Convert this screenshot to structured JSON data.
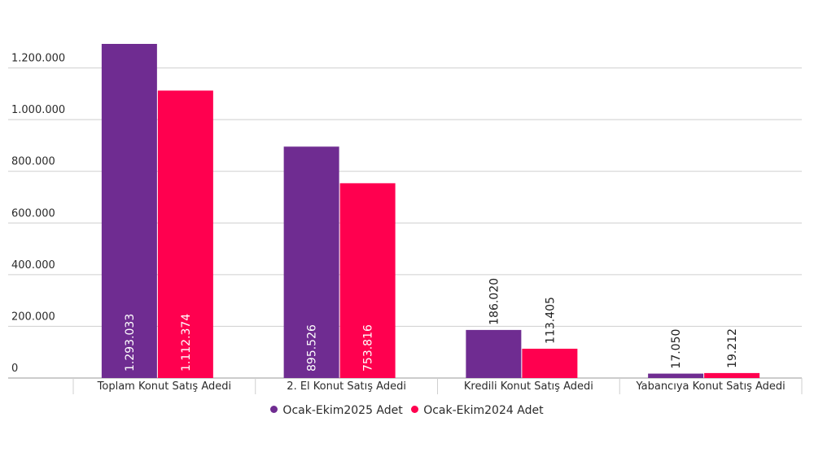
{
  "chart_data": {
    "type": "bar",
    "title": "",
    "xlabel": "",
    "ylabel": "",
    "ylim": [
      0,
      1300000
    ],
    "grid": true,
    "legend_position": "bottom",
    "yticks": [
      0,
      200000,
      400000,
      600000,
      800000,
      1000000,
      1200000
    ],
    "ytick_labels": [
      "0",
      "200.000",
      "400.000",
      "600.000",
      "800.000",
      "1.000.000",
      "1.200.000"
    ],
    "categories": [
      "Toplam Konut Satış Adedi",
      "2. El Konut Satış Adedi",
      "Kredili Konut Satış Adedi",
      "Yabancıya Konut Satış Adedi"
    ],
    "series": [
      {
        "name": "Ocak-Ekim2025 Adet",
        "color": "#6f2c91",
        "values": [
          1293033,
          895526,
          186020,
          17050
        ],
        "labels": [
          "1.293.033",
          "895.526",
          "186.020",
          "17.050"
        ]
      },
      {
        "name": "Ocak-Ekim2024 Adet",
        "color": "#ff004f",
        "values": [
          1112374,
          753816,
          113405,
          19212
        ],
        "labels": [
          "1.112.374",
          "753.816",
          "113.405",
          "19.212"
        ]
      }
    ]
  }
}
